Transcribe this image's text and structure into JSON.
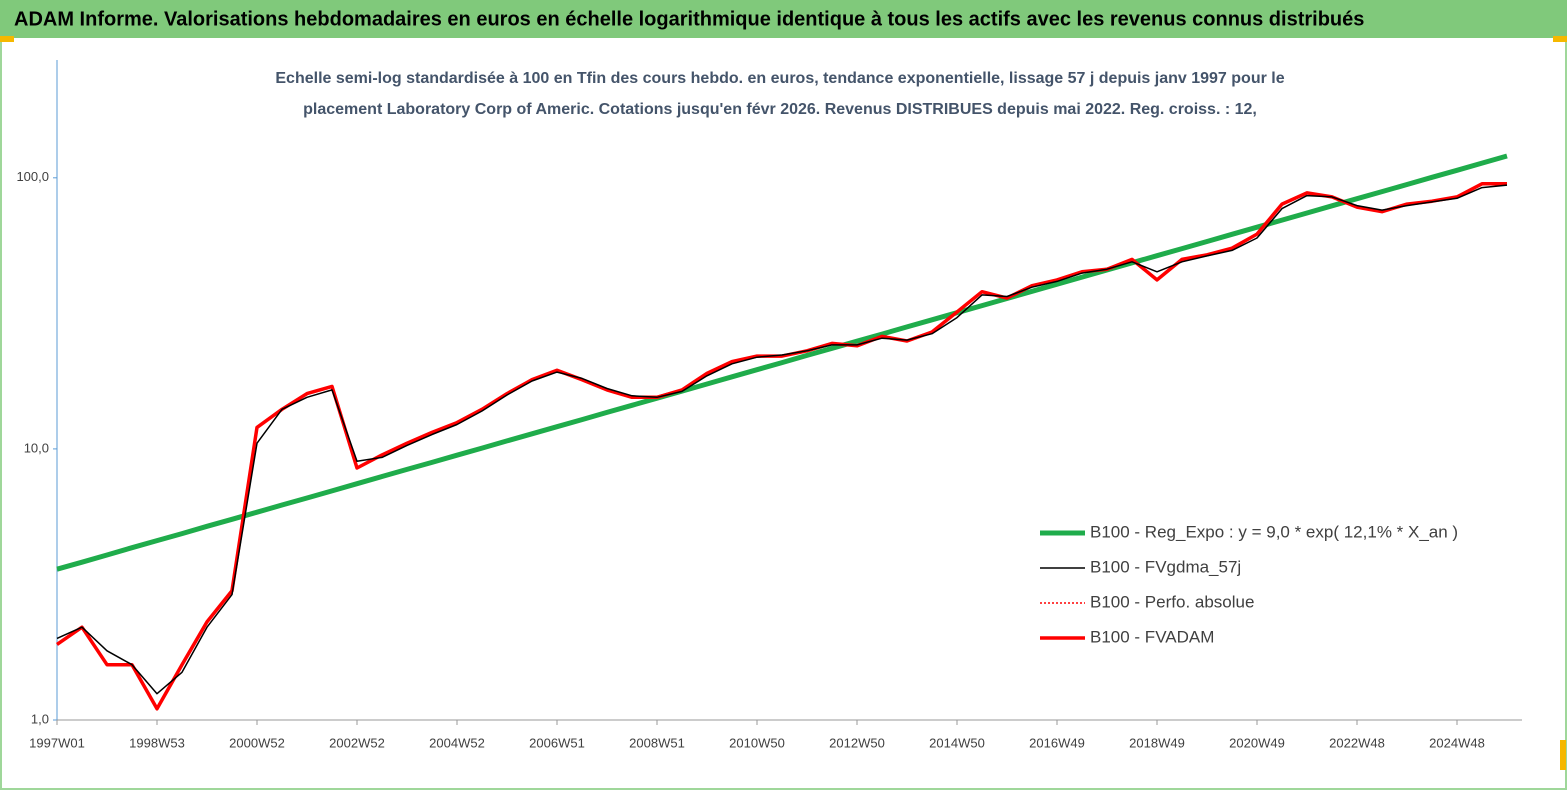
{
  "header": {
    "title": "ADAM Informe. Valorisations hebdomadaires en euros en échelle logarithmique identique à tous les actifs avec les revenus connus distribués"
  },
  "chart_data": {
    "type": "line",
    "subtitle": [
      "Echelle semi-log standardisée à 100 en Tfin des cours hebdo. en euros, tendance exponentielle, lissage 57 j depuis janv 1997 pour le",
      "placement Laboratory Corp of Americ.  Cotations jusqu'en févr 2026. Revenus DISTRIBUES depuis mai 2022. Reg. croiss. : 12,"
    ],
    "log_scale": true,
    "ylim": [
      1,
      272
    ],
    "yticks": [
      {
        "value": 1,
        "label": "1,0"
      },
      {
        "value": 10,
        "label": "10,0"
      },
      {
        "value": 100,
        "label": "100,0"
      }
    ],
    "categories": [
      "1997W01",
      null,
      null,
      null,
      "1998W53",
      null,
      null,
      null,
      "2000W52",
      null,
      null,
      null,
      "2002W52",
      null,
      null,
      null,
      "2004W52",
      null,
      null,
      null,
      "2006W51",
      null,
      null,
      null,
      "2008W51",
      null,
      null,
      null,
      "2010W50",
      null,
      null,
      null,
      "2012W50",
      null,
      null,
      null,
      "2014W50",
      null,
      null,
      null,
      "2016W49",
      null,
      null,
      null,
      "2018W49",
      null,
      null,
      null,
      "2020W49",
      null,
      null,
      null,
      "2022W48",
      null,
      null,
      null,
      "2024W48",
      null,
      null
    ],
    "series": [
      {
        "name": "B100 - Reg_Expo : y = 9,0 * exp( 12,1% *  X_an )",
        "color": "#1fac4b",
        "width": 5,
        "values": [
          3.6,
          3.82,
          4.06,
          4.32,
          4.59,
          4.87,
          5.18,
          5.5,
          5.84,
          6.21,
          6.59,
          7.0,
          7.44,
          7.91,
          8.4,
          8.92,
          9.48,
          10.07,
          10.7,
          11.37,
          12.08,
          12.83,
          13.63,
          14.48,
          15.38,
          16.34,
          17.36,
          18.45,
          19.6,
          20.82,
          22.12,
          23.5,
          24.96,
          26.52,
          28.18,
          29.93,
          31.8,
          33.78,
          35.89,
          38.13,
          40.51,
          43.03,
          45.72,
          48.57,
          51.6,
          54.82,
          58.24,
          61.87,
          65.73,
          69.83,
          74.18,
          78.81,
          83.72,
          88.95,
          94.49,
          100.4,
          106.6,
          113.3,
          120.4
        ]
      },
      {
        "name": "B100 - FVgdma_57j",
        "color": "#000000",
        "width": 1.5,
        "values": [
          2.0,
          2.2,
          1.8,
          1.6,
          1.25,
          1.5,
          2.2,
          2.9,
          10.5,
          14,
          15.5,
          16.5,
          9.0,
          9.3,
          10.3,
          11.3,
          12.3,
          13.8,
          15.8,
          17.8,
          19.2,
          18.2,
          16.7,
          15.7,
          15.5,
          16.3,
          18.6,
          20.6,
          21.8,
          22.2,
          23,
          24.2,
          24.2,
          25.6,
          25.2,
          26.6,
          30.5,
          37,
          36.5,
          39.5,
          41.5,
          44.5,
          46,
          49,
          45,
          49,
          51.5,
          54,
          60,
          77,
          86,
          85,
          79,
          76,
          79,
          81.5,
          84,
          92,
          94
        ]
      },
      {
        "name": "B100 - Perfo. absolue",
        "color": "#ff0000",
        "width": 1.5,
        "dash": "dotted",
        "values": [
          1.9,
          2.2,
          1.6,
          1.6,
          1.1,
          1.6,
          2.3,
          3.0,
          12,
          14,
          16,
          17,
          8.5,
          9.5,
          10.5,
          11.5,
          12.5,
          14,
          16,
          18,
          19.5,
          18,
          16.5,
          15.5,
          15.5,
          16.5,
          19,
          21,
          22,
          22,
          23,
          24.5,
          24,
          26,
          25,
          27,
          32,
          38,
          36,
          40,
          42,
          45,
          46,
          50,
          42,
          50,
          52,
          55,
          62,
          80,
          88,
          85,
          78,
          75,
          80,
          82,
          85,
          95,
          95
        ]
      },
      {
        "name": "B100 - FVADAM",
        "color": "#ff0000",
        "width": 3.5,
        "values": [
          1.9,
          2.2,
          1.6,
          1.6,
          1.1,
          1.6,
          2.3,
          3.0,
          12,
          14,
          16,
          17,
          8.5,
          9.5,
          10.5,
          11.5,
          12.5,
          14,
          16,
          18,
          19.5,
          18,
          16.5,
          15.5,
          15.5,
          16.5,
          19,
          21,
          22,
          22,
          23,
          24.5,
          24,
          26,
          25,
          27,
          32,
          38,
          36,
          40,
          42,
          45,
          46,
          50,
          42,
          50,
          52,
          55,
          62,
          80,
          88,
          85,
          78,
          75,
          80,
          82,
          85,
          95,
          95
        ]
      }
    ]
  }
}
